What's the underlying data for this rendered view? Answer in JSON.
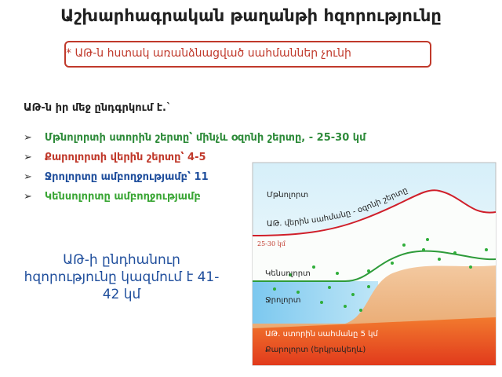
{
  "header": {
    "title": "Աշխարհագրական թաղանթի հզորությունը",
    "note": "* ԱԹ-ն հստակ առանձնացված սահմաններ չունի"
  },
  "intro": "ԱԹ-ն իր մեջ ընդգրկում է.`",
  "bullets": [
    "Մթնոլորտի ստորին շերտը՝ մինչև օզոնի շերտը, - 25-30 կմ",
    "Քարոլորտի վերին շերտը՝ 4-5",
    "Ջրոլորտը ամբողջությամբ՝ 11",
    "Կենսոլորտը ամբողջությամբ"
  ],
  "summary": "ԱԹ-ի ընդհանուր հզորությունը կազմում է 41-42 կմ",
  "diagram": {
    "labels": {
      "atmosphere": "Մթնոլորտ",
      "upper_limit": "ԱԹ. վերին սահմանը - օզոնի շերտը",
      "upper_depth": "25-30 կմ",
      "biosphere": "Կենսոլորտ",
      "hydrosphere": "Ջրոլորտ",
      "lower_limit": "ԱԹ. ստորին սահմանը 5 կմ",
      "lithosphere": "Քարոլորտ (երկրակեղև)"
    }
  }
}
